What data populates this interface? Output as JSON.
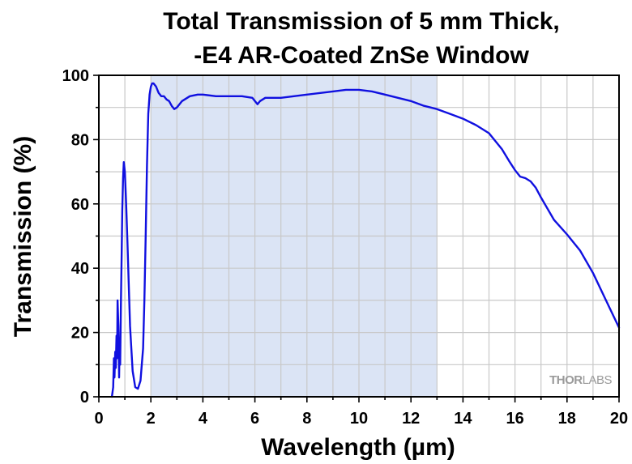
{
  "chart_data": {
    "type": "line",
    "title": [
      "Total Transmission of 5 mm Thick,",
      "-E4 AR-Coated ZnSe Window"
    ],
    "xlabel": "Wavelength (µm)",
    "ylabel": "Transmission (%)",
    "xlim": [
      0,
      20
    ],
    "ylim": [
      0,
      100
    ],
    "xticks": [
      0,
      2,
      4,
      6,
      8,
      10,
      12,
      14,
      16,
      18,
      20
    ],
    "yticks": [
      0,
      20,
      40,
      60,
      80,
      100
    ],
    "grid": true,
    "shaded_region": {
      "x_start": 2,
      "x_end": 13,
      "color": "#dbe4f5"
    },
    "line_color": "#1010e0",
    "brand": {
      "prefix": "THOR",
      "suffix": "LABS"
    },
    "series": [
      {
        "x": [
          0.5,
          0.55,
          0.58,
          0.6,
          0.63,
          0.65,
          0.68,
          0.7,
          0.72,
          0.75,
          0.78,
          0.8,
          0.82,
          0.85,
          0.88,
          0.9,
          0.93,
          0.96,
          1.0,
          1.05,
          1.1,
          1.15,
          1.2,
          1.3,
          1.4,
          1.5,
          1.6,
          1.7,
          1.75,
          1.8,
          1.85,
          1.9,
          1.95,
          2.0,
          2.05,
          2.1,
          2.2,
          2.3,
          2.4,
          2.5,
          2.6,
          2.7,
          2.8,
          2.9,
          3.0,
          3.2,
          3.5,
          3.8,
          4.0,
          4.5,
          5.0,
          5.5,
          5.9,
          6.0,
          6.1,
          6.2,
          6.4,
          7.0,
          8.0,
          9.0,
          9.5,
          10.0,
          10.5,
          11.0,
          11.5,
          12.0,
          12.5,
          13.0,
          13.5,
          14.0,
          14.5,
          15.0,
          15.5,
          15.8,
          16.0,
          16.2,
          16.4,
          16.6,
          16.8,
          17.0,
          17.5,
          18.0,
          18.5,
          19.0,
          19.5,
          20.0
        ],
        "values": [
          0,
          3,
          12,
          6,
          14,
          9,
          19,
          12,
          30,
          22,
          6,
          18,
          10,
          30,
          45,
          58,
          68,
          73,
          70,
          60,
          48,
          35,
          22,
          8,
          3,
          2.5,
          5,
          15,
          30,
          50,
          72,
          88,
          94,
          96.5,
          97.5,
          97.5,
          96.5,
          94.5,
          93.5,
          93.5,
          92.5,
          92,
          90.5,
          89.5,
          90,
          92,
          93.5,
          94,
          94,
          93.5,
          93.5,
          93.5,
          93,
          92,
          91,
          92,
          93,
          93,
          94,
          95,
          95.5,
          95.5,
          95,
          94,
          93,
          92,
          90.5,
          89.5,
          88,
          86.5,
          84.5,
          82,
          77,
          73,
          70.5,
          68.5,
          68,
          67,
          65,
          62,
          55,
          50.5,
          45.5,
          38.5,
          30,
          21.5
        ]
      }
    ]
  }
}
